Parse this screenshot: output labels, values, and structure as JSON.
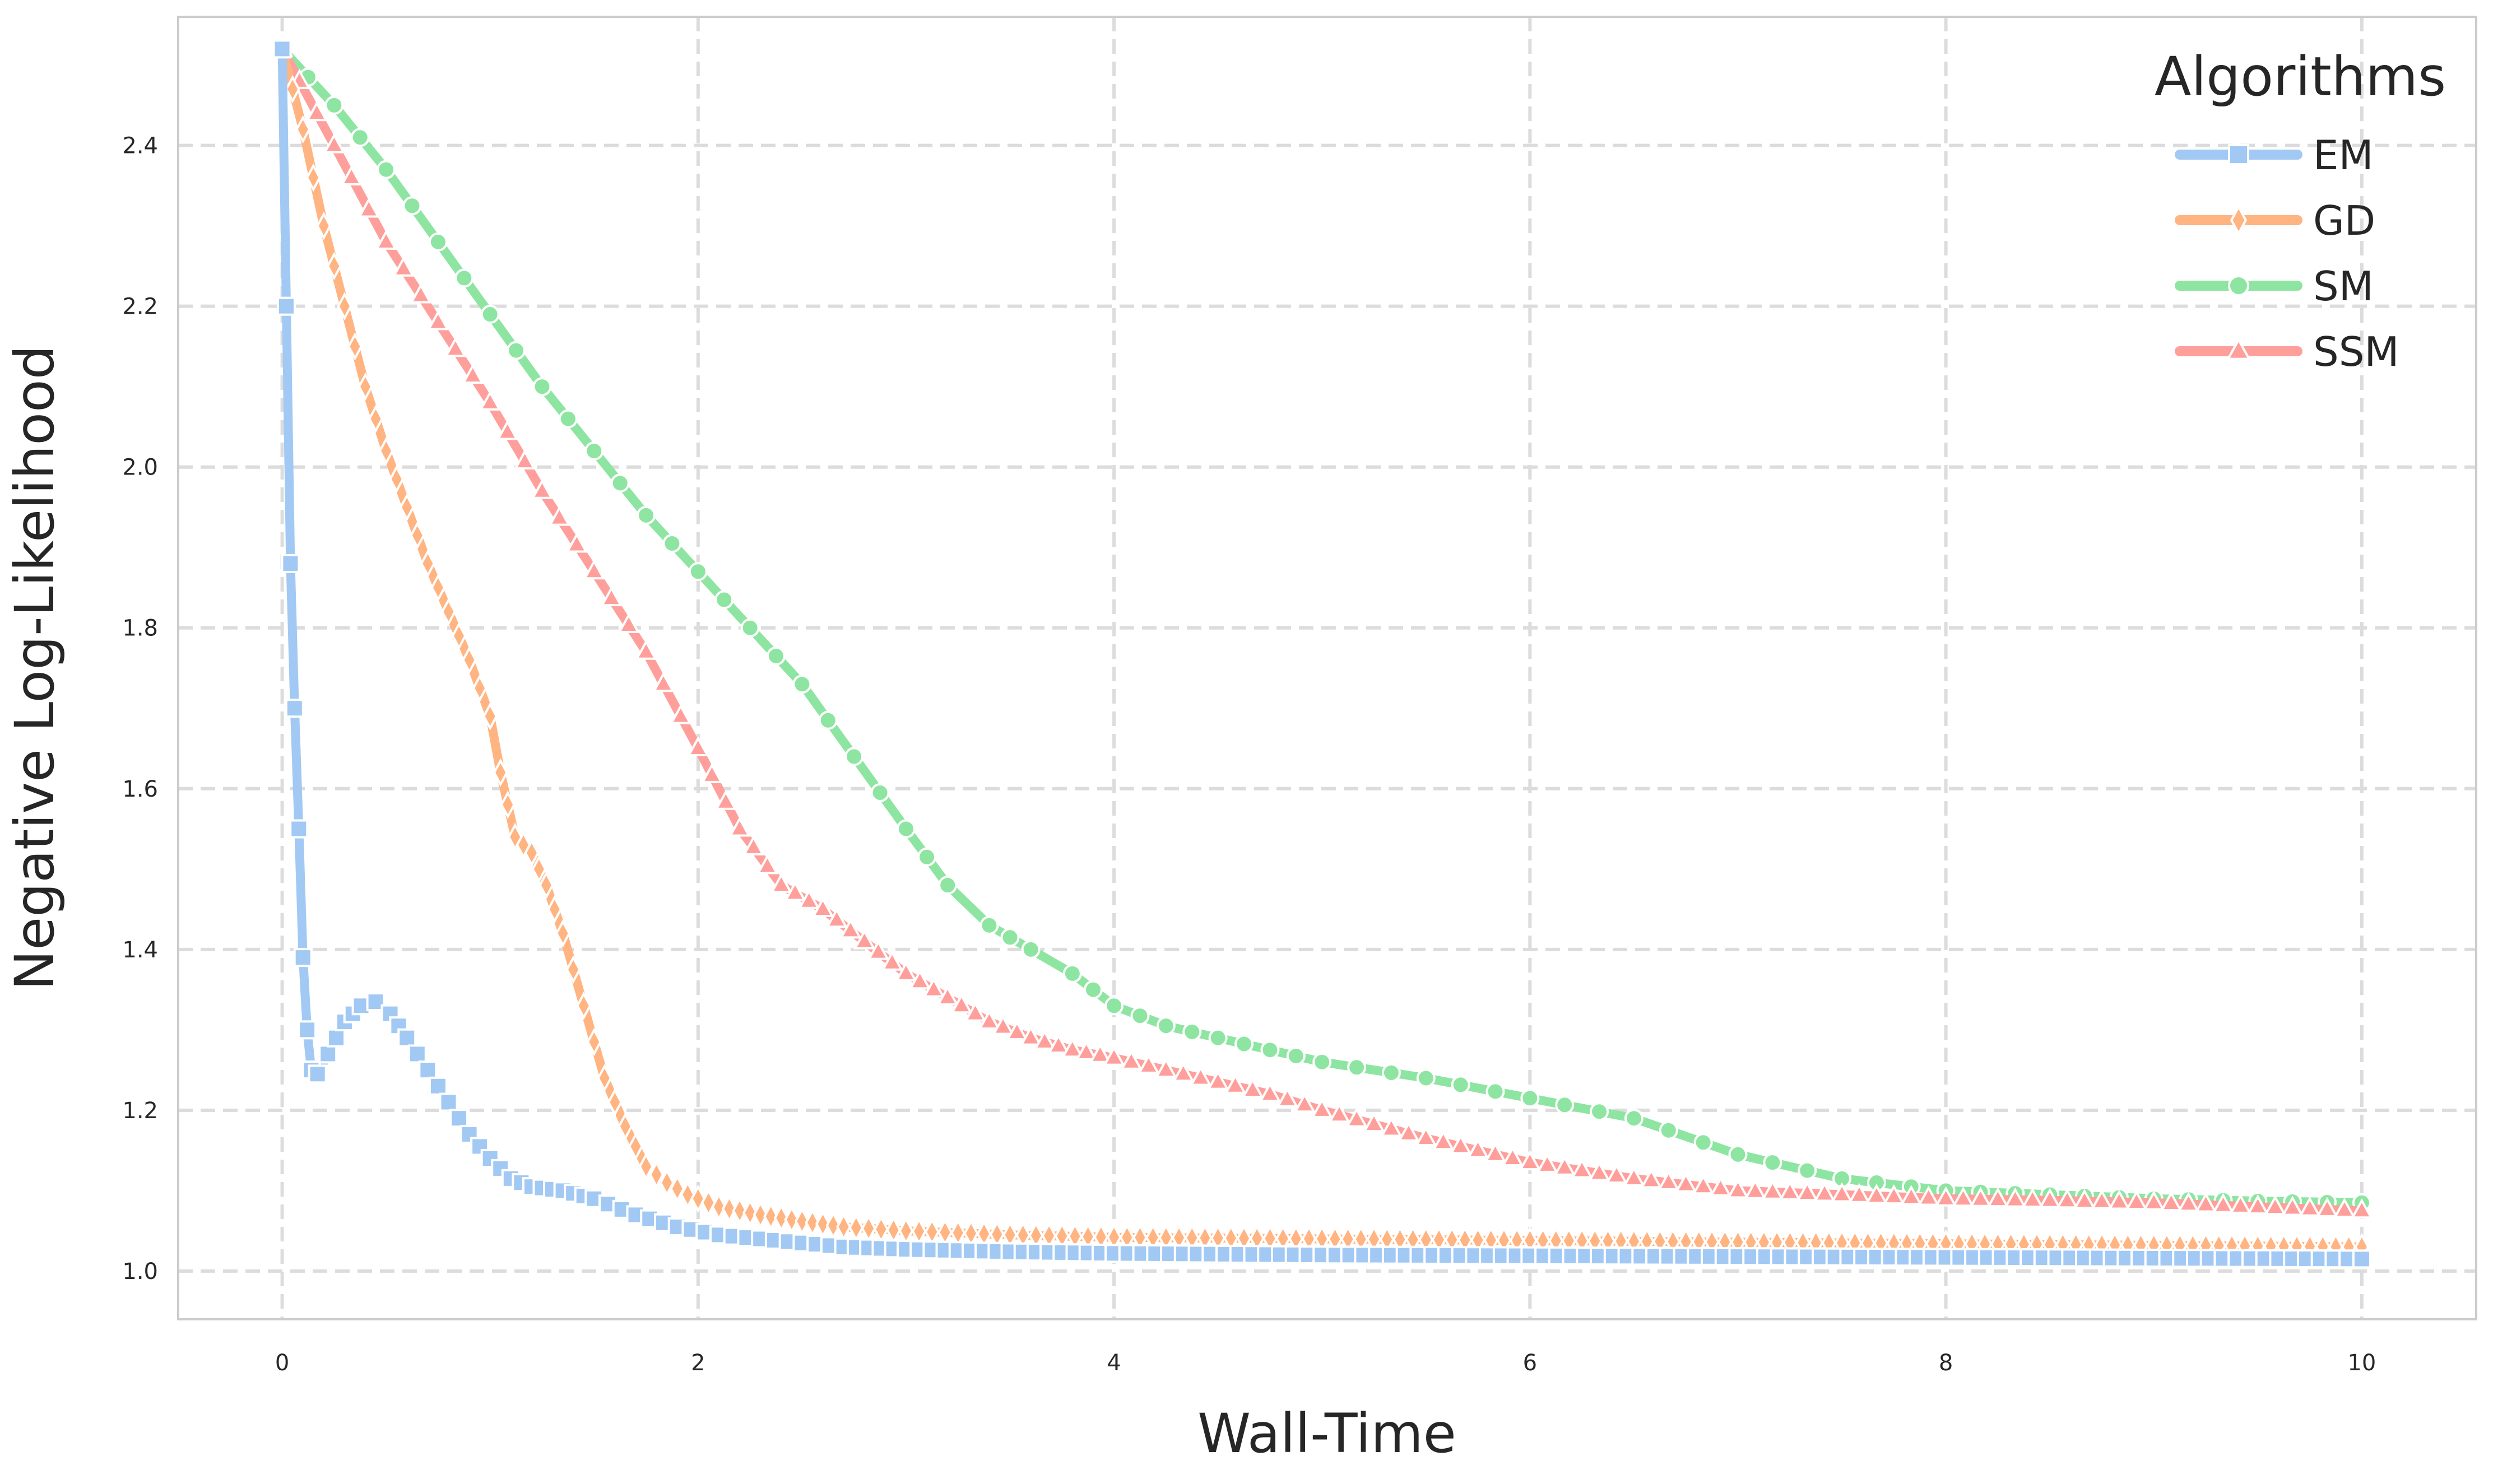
{
  "chart_data": {
    "type": "line",
    "title": "",
    "xlabel": "Wall-Time",
    "ylabel": "Negative Log-Likelihood",
    "xlim": [
      -0.5,
      10.55
    ],
    "ylim": [
      0.94,
      2.56
    ],
    "xticks": [
      0,
      2,
      4,
      6,
      8,
      10
    ],
    "xtick_labels": [
      "0",
      "2",
      "4",
      "6",
      "8",
      "10"
    ],
    "yticks": [
      1.0,
      1.2,
      1.4,
      1.6,
      1.8,
      2.0,
      2.2,
      2.4
    ],
    "ytick_labels": [
      "1.0",
      "1.2",
      "1.4",
      "1.6",
      "1.8",
      "2.0",
      "2.2",
      "2.4"
    ],
    "grid": true,
    "legend": {
      "title": "Algorithms",
      "position": "top-right"
    },
    "series": [
      {
        "name": "EM",
        "color": "#a1c9f4",
        "marker": "square",
        "x": [
          0,
          0.02,
          0.04,
          0.06,
          0.08,
          0.1,
          0.12,
          0.14,
          0.17,
          0.22,
          0.3,
          0.38,
          0.45,
          0.52,
          0.6,
          0.7,
          0.8,
          0.9,
          1.0,
          1.1,
          1.2,
          1.35,
          1.5,
          1.7,
          1.9,
          2.1,
          2.3,
          2.5,
          2.7,
          3.0,
          3.5,
          4.0,
          5.0,
          6.0,
          7.0,
          8.0,
          9.0,
          10.0
        ],
        "y": [
          2.52,
          2.2,
          1.88,
          1.7,
          1.55,
          1.39,
          1.3,
          1.25,
          1.245,
          1.27,
          1.31,
          1.33,
          1.335,
          1.32,
          1.29,
          1.25,
          1.21,
          1.17,
          1.14,
          1.115,
          1.105,
          1.1,
          1.09,
          1.07,
          1.055,
          1.045,
          1.04,
          1.035,
          1.03,
          1.027,
          1.024,
          1.022,
          1.02,
          1.019,
          1.018,
          1.017,
          1.016,
          1.015
        ]
      },
      {
        "name": "GD",
        "color": "#ffb482",
        "marker": "diamond",
        "x": [
          0,
          0.1,
          0.2,
          0.3,
          0.4,
          0.5,
          0.6,
          0.7,
          0.8,
          0.9,
          1.0,
          1.05,
          1.12,
          1.2,
          1.27,
          1.35,
          1.45,
          1.55,
          1.65,
          1.75,
          1.85,
          1.95,
          2.1,
          2.3,
          2.5,
          2.7,
          3.0,
          3.5,
          4.0,
          5.0,
          6.0,
          7.0,
          8.0,
          9.0,
          10.0
        ],
        "y": [
          2.52,
          2.42,
          2.3,
          2.2,
          2.1,
          2.02,
          1.95,
          1.88,
          1.82,
          1.76,
          1.69,
          1.62,
          1.54,
          1.52,
          1.48,
          1.42,
          1.33,
          1.24,
          1.18,
          1.13,
          1.11,
          1.095,
          1.08,
          1.07,
          1.062,
          1.055,
          1.05,
          1.045,
          1.042,
          1.04,
          1.038,
          1.036,
          1.034,
          1.032,
          1.03
        ]
      },
      {
        "name": "SM",
        "color": "#8de5a1",
        "marker": "circle",
        "x": [
          0,
          0.25,
          0.5,
          0.75,
          1.0,
          1.25,
          1.5,
          1.75,
          2.0,
          2.25,
          2.5,
          2.75,
          3.0,
          3.2,
          3.4,
          3.6,
          3.8,
          4.0,
          4.25,
          4.5,
          4.75,
          5.0,
          5.5,
          6.0,
          6.5,
          7.0,
          7.5,
          8.0,
          8.5,
          9.0,
          9.5,
          10.0
        ],
        "y": [
          2.52,
          2.45,
          2.37,
          2.28,
          2.19,
          2.1,
          2.02,
          1.94,
          1.87,
          1.8,
          1.73,
          1.64,
          1.55,
          1.48,
          1.43,
          1.4,
          1.37,
          1.33,
          1.305,
          1.29,
          1.275,
          1.26,
          1.24,
          1.215,
          1.19,
          1.145,
          1.115,
          1.1,
          1.095,
          1.09,
          1.087,
          1.085
        ]
      },
      {
        "name": "SSM",
        "color": "#ff9f9b",
        "marker": "triangle",
        "x": [
          0,
          0.25,
          0.5,
          0.75,
          1.0,
          1.25,
          1.5,
          1.75,
          2.0,
          2.2,
          2.4,
          2.6,
          2.8,
          3.0,
          3.2,
          3.4,
          3.6,
          3.8,
          4.0,
          4.25,
          4.5,
          4.75,
          5.0,
          5.5,
          6.0,
          6.5,
          7.0,
          7.5,
          8.0,
          8.5,
          9.0,
          9.5,
          10.0
        ],
        "y": [
          2.52,
          2.4,
          2.28,
          2.18,
          2.08,
          1.97,
          1.87,
          1.77,
          1.65,
          1.55,
          1.48,
          1.45,
          1.41,
          1.37,
          1.34,
          1.31,
          1.29,
          1.275,
          1.265,
          1.25,
          1.235,
          1.22,
          1.2,
          1.165,
          1.135,
          1.115,
          1.1,
          1.095,
          1.09,
          1.088,
          1.085,
          1.08,
          1.075
        ]
      }
    ]
  }
}
